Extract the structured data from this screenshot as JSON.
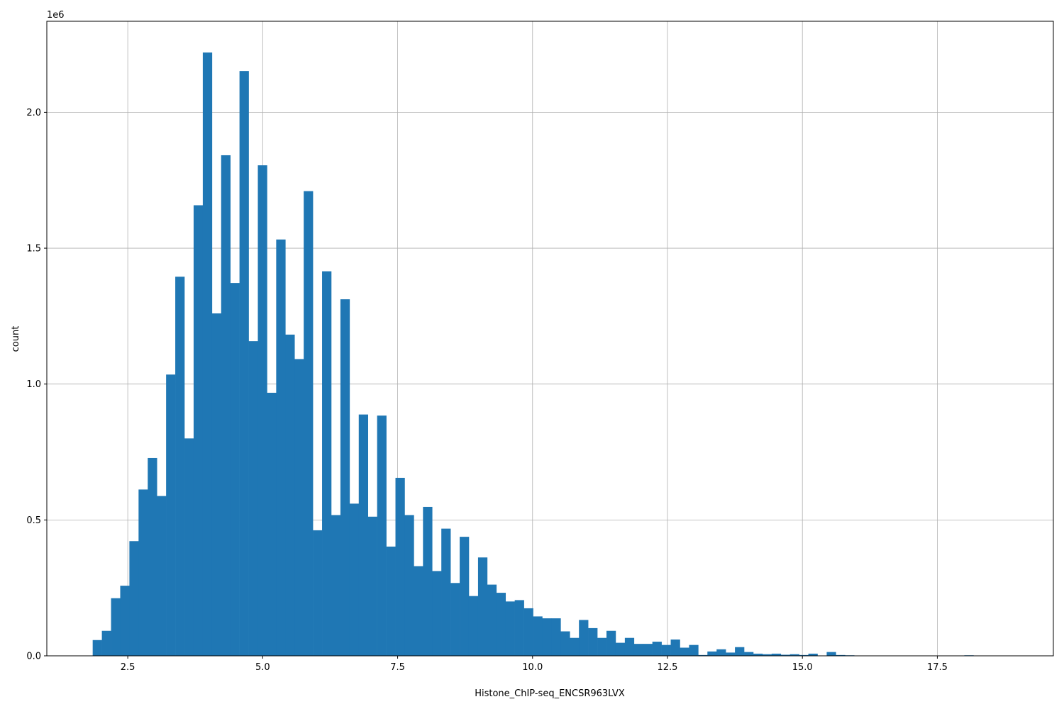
{
  "chart_data": {
    "type": "bar",
    "xlabel": "Histone_ChIP-seq_ENCSR963LVX",
    "ylabel": "count",
    "y_multiplier_label": "1e6",
    "x_tick_labels": [
      "2.5",
      "5.0",
      "7.5",
      "10.0",
      "12.5",
      "15.0",
      "17.5"
    ],
    "y_tick_labels": [
      "0.0",
      "0.5",
      "1.0",
      "1.5",
      "2.0"
    ],
    "x_ticks": [
      2.5,
      5.0,
      7.5,
      10.0,
      12.5,
      15.0,
      17.5
    ],
    "y_ticks": [
      0.0,
      0.5,
      1.0,
      1.5,
      2.0
    ],
    "xlim": [
      1.0,
      19.65
    ],
    "ylim": [
      0.0,
      2.335
    ],
    "grid": true,
    "bar_color": "#1f77b4",
    "bin_start": 1.85,
    "bin_width": 0.17,
    "values": [
      0.058,
      0.092,
      0.212,
      0.258,
      0.422,
      0.612,
      0.728,
      0.588,
      1.035,
      1.395,
      0.8,
      1.658,
      2.22,
      1.26,
      1.842,
      1.372,
      2.152,
      1.158,
      1.805,
      0.968,
      1.532,
      1.182,
      1.092,
      1.71,
      0.462,
      1.415,
      0.518,
      1.312,
      0.56,
      0.888,
      0.512,
      0.884,
      0.402,
      0.655,
      0.518,
      0.33,
      0.548,
      0.312,
      0.468,
      0.268,
      0.438,
      0.22,
      0.362,
      0.262,
      0.232,
      0.2,
      0.205,
      0.175,
      0.145,
      0.138,
      0.138,
      0.09,
      0.066,
      0.132,
      0.102,
      0.066,
      0.092,
      0.048,
      0.066,
      0.044,
      0.044,
      0.052,
      0.04,
      0.06,
      0.03,
      0.04,
      0.003,
      0.016,
      0.024,
      0.012,
      0.032,
      0.014,
      0.008,
      0.006,
      0.008,
      0.004,
      0.006,
      0.003,
      0.008,
      0.001,
      0.014,
      0.003,
      0.002,
      0.001,
      0.001,
      0.0005,
      0.0003,
      0.0003,
      0.0002,
      0.0002,
      0.0001,
      0.0001,
      0.0001,
      0.0001,
      0.0001,
      0.002,
      0.0,
      0.0,
      0.0,
      0.0001
    ]
  }
}
